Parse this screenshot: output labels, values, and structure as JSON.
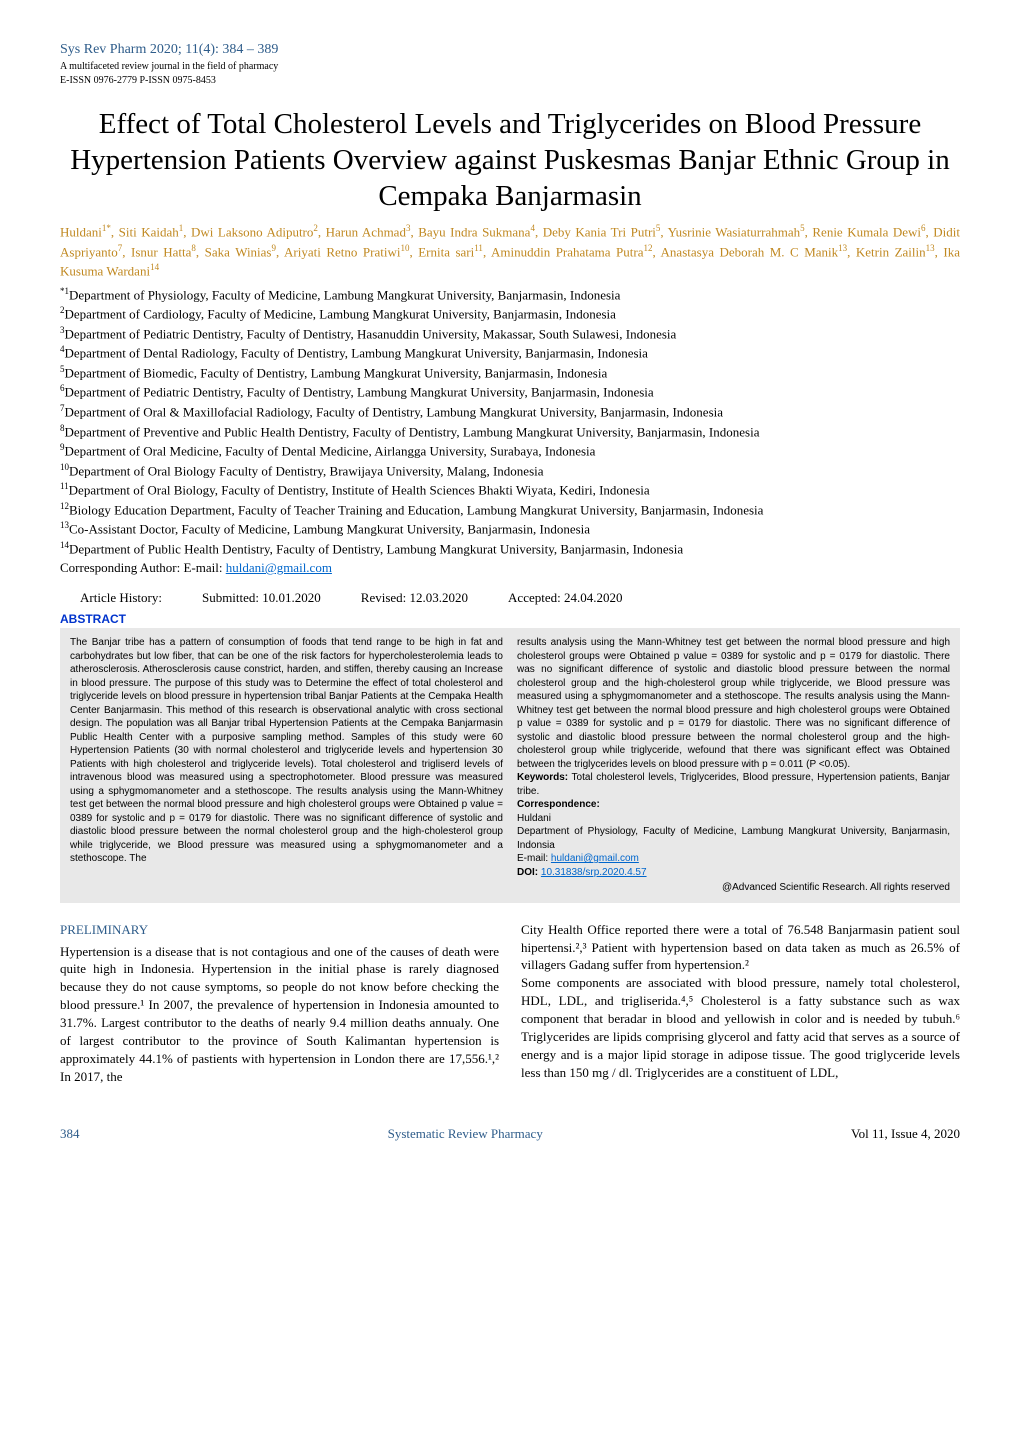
{
  "colors": {
    "accent": "#2e5c8a",
    "author": "#c08820",
    "link": "#0066cc",
    "abstract_bg": "#e8e8e8",
    "abstract_heading": "#0033cc",
    "body_text": "#000000",
    "page_bg": "#ffffff"
  },
  "typography": {
    "title_fontsize_pt": 22,
    "body_fontsize_pt": 10,
    "abstract_fontsize_pt": 8,
    "font_family_body": "Georgia, Times New Roman, serif",
    "font_family_abstract": "Arial, Helvetica, sans-serif"
  },
  "header": {
    "journal_line": "Sys Rev Pharm 2020; 11(4): 384 – 389",
    "subtitle1": "A multifaceted review journal in the field of pharmacy",
    "subtitle2": "E-ISSN 0976-2779 P-ISSN 0975-8453"
  },
  "title": "Effect of Total Cholesterol Levels and Triglycerides on Blood Pressure Hypertension Patients Overview against Puskesmas Banjar Ethnic Group in Cempaka Banjarmasin",
  "authors_html": "Huldani<sup>1*</sup>, Siti Kaidah<sup>1</sup>, Dwi Laksono Adiputro<sup>2</sup>, Harun Achmad<sup>3</sup>, Bayu Indra Sukmana<sup>4</sup>, Deby Kania Tri Putri<sup>5</sup>, Yusrinie Wasiaturrahmah<sup>5</sup>, Renie Kumala Dewi<sup>6</sup>, Didit Aspriyanto<sup>7</sup>, Isnur Hatta<sup>8</sup>, Saka Winias<sup>9</sup>, Ariyati Retno Pratiwi<sup>10</sup>, Ernita sari<sup>11</sup>, Aminuddin Prahatama Putra<sup>12</sup>, Anastasya Deborah M. C Manik<sup>13</sup>, Ketrin Zailin<sup>13</sup>, Ika Kusuma Wardani<sup>14</sup>",
  "affiliations": [
    "*1Department of Physiology, Faculty of Medicine, Lambung Mangkurat University, Banjarmasin, Indonesia",
    "2Department of Cardiology, Faculty of Medicine, Lambung Mangkurat University, Banjarmasin, Indonesia",
    "3Department of Pediatric Dentistry, Faculty of Dentistry, Hasanuddin University, Makassar, South Sulawesi, Indonesia",
    "4Department of Dental Radiology, Faculty of Dentistry, Lambung Mangkurat University, Banjarmasin, Indonesia",
    "5Department of Biomedic, Faculty of Dentistry, Lambung Mangkurat University, Banjarmasin, Indonesia",
    "6Department of Pediatric Dentistry, Faculty of Dentistry, Lambung Mangkurat University, Banjarmasin, Indonesia",
    "7Department of Oral & Maxillofacial Radiology, Faculty of Dentistry, Lambung Mangkurat University, Banjarmasin, Indonesia",
    "8Department of Preventive and Public Health Dentistry, Faculty of Dentistry, Lambung Mangkurat University, Banjarmasin, Indonesia",
    "9Department of Oral Medicine, Faculty of Dental Medicine, Airlangga University, Surabaya, Indonesia",
    "10Department of Oral Biology Faculty of Dentistry, Brawijaya University, Malang, Indonesia",
    "11Department of Oral Biology, Faculty of Dentistry, Institute of Health Sciences Bhakti Wiyata, Kediri, Indonesia",
    "12Biology Education Department, Faculty of Teacher Training and Education, Lambung Mangkurat  University, Banjarmasin, Indonesia",
    "13Co-Assistant Doctor, Faculty of Medicine, Lambung Mangkurat University, Banjarmasin, Indonesia",
    "14 Department of Public Health Dentistry, Faculty of Dentistry, Lambung Mangkurat University, Banjarmasin, Indonesia"
  ],
  "corresponding_label": "Corresponding Author:  E-mail: ",
  "corresponding_email": "huldani@gmail.com",
  "history": {
    "label": "Article History:",
    "submitted": "Submitted: 10.01.2020",
    "revised": "Revised: 12.03.2020",
    "accepted": "Accepted: 24.04.2020"
  },
  "abstract": {
    "heading": "ABSTRACT",
    "col1": "The Banjar tribe has a pattern of consumption of foods that tend range to be high in fat and carbohydrates but low fiber, that can be one of the risk factors for hypercholesterolemia leads to atherosclerosis. Atherosclerosis cause constrict, harden, and stiffen, thereby causing an Increase in blood pressure. The purpose of this study was to Determine the effect of total cholesterol and triglyceride levels on blood pressure in hypertension tribal Banjar Patients at the Cempaka Health Center Banjarmasin. This method of this research is observational analytic with cross sectional design. The population was all Banjar tribal Hypertension Patients at the Cempaka Banjarmasin Public Health Center with a purposive sampling method. Samples of this study were 60 Hypertension Patients (30 with normal cholesterol and triglyceride levels and hypertension 30 Patients with high cholesterol and triglyceride levels). Total cholesterol and trigliserd levels of intravenous blood was measured using a spectrophotometer. Blood pressure was measured using a sphygmomanometer and a stethoscope. The results analysis using the Mann-Whitney test get between the normal blood pressure and high cholesterol groups were Obtained p value = 0389 for systolic and p = 0179 for diastolic. There was no significant difference of systolic and diastolic blood pressure between the normal cholesterol group and the high-cholesterol group while triglyceride, we Blood pressure was measured using a sphygmomanometer and a stethoscope. The",
    "col2_top": "results analysis using the Mann-Whitney test get between the normal blood pressure and high cholesterol groups were Obtained p value = 0389 for systolic and p = 0179 for diastolic. There was no significant difference of systolic and diastolic blood pressure between the normal cholesterol group and the high-cholesterol group while triglyceride, we Blood pressure was measured using a sphygmomanometer and a stethoscope. The results analysis using the Mann-Whitney test get between the normal blood pressure and high cholesterol groups were Obtained p value = 0389 for systolic and p = 0179 for diastolic. There was no significant difference of systolic and diastolic blood pressure between the normal cholesterol group and the high-cholesterol group while triglyceride, wefound that there was significant effect was Obtained between the triglycerides levels on blood pressure with p = 0.011 (P <0.05).",
    "keywords_label": "Keywords:",
    "keywords_text": " Total cholesterol levels, Triglycerides, Blood pressure, Hypertension patients, Banjar tribe.",
    "corr_heading": "Correspondence:",
    "corr_name": "Huldani",
    "corr_body": "Department of Physiology, Faculty of Medicine, Lambung Mangkurat University, Banjarmasin, Indonsia",
    "corr_email_label": "E-mail: ",
    "corr_email": "huldani@gmail.com",
    "doi_label": "DOI: ",
    "doi_link": "10.31838/srp.2020.4.57",
    "rights": "@Advanced Scientific Research. All rights reserved"
  },
  "body": {
    "heading": "PRELIMINARY",
    "col1": "Hypertension is a disease that is not contagious and one of the causes of death were quite high in Indonesia. Hypertension in the initial phase is rarely diagnosed because they do not cause symptoms, so people do not know before checking the blood pressure.¹ In 2007, the prevalence of hypertension in Indonesia amounted to 31.7%. Largest contributor to the deaths of nearly 9.4 million deaths annualy. One of largest contributor to the province of South Kalimantan hypertension is approximately 44.1% of pastients with hypertension in London there are 17,556.¹,² In 2017, the",
    "col2": "City Health Office reported there were a total of 76.548 Banjarmasin patient soul hipertensi.²,³ Patient with hypertension based on data taken as much as 26.5% of villagers Gadang suffer from hypertension.²\nSome components are associated with blood pressure, namely total cholesterol, HDL, LDL, and trigliserida.⁴,⁵ Cholesterol is a fatty substance such as wax component that beradar in blood and yellowish in color and is needed by tubuh.⁶ Triglycerides are lipids comprising glycerol and fatty acid that serves as a source of energy and is a major lipid storage in adipose tissue. The good triglyceride levels less than 150 mg / dl. Triglycerides are a constituent of LDL,"
  },
  "footer": {
    "page": "384",
    "center": "Systematic Review Pharmacy",
    "right": "Vol 11, Issue 4, 2020"
  }
}
